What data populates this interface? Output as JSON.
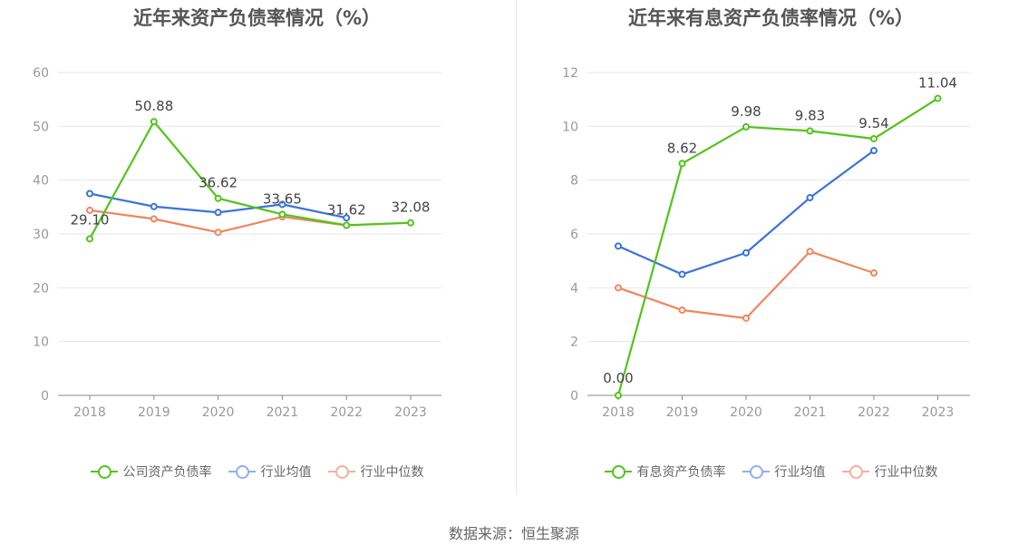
{
  "chart_data": [
    {
      "type": "line",
      "title": "近年来资产负债率情况（%）",
      "categories": [
        "2018",
        "2019",
        "2020",
        "2021",
        "2022",
        "2023"
      ],
      "ylim": [
        0,
        60
      ],
      "yticks": [
        0,
        10,
        20,
        30,
        40,
        50,
        60
      ],
      "grid": true,
      "legend_position": "bottom",
      "series": [
        {
          "name": "公司资产负债率",
          "color": "#52c41a",
          "values": [
            29.1,
            50.88,
            36.62,
            33.65,
            31.62,
            32.08
          ],
          "labels": [
            "29.10",
            "50.88",
            "36.62",
            "33.65",
            "31.62",
            "32.08"
          ],
          "show_labels": true
        },
        {
          "name": "行业均值",
          "color": "#3a73db",
          "values": [
            37.5,
            35.1,
            34.0,
            35.5,
            33.0,
            null
          ],
          "show_labels": false
        },
        {
          "name": "行业中位数",
          "color": "#f0865a",
          "values": [
            34.4,
            32.8,
            30.3,
            33.2,
            31.6,
            null
          ],
          "show_labels": false
        }
      ]
    },
    {
      "type": "line",
      "title": "近年来有息资产负债率情况（%）",
      "categories": [
        "2018",
        "2019",
        "2020",
        "2021",
        "2022",
        "2023"
      ],
      "ylim": [
        0,
        12
      ],
      "yticks": [
        0,
        2,
        4,
        6,
        8,
        10,
        12
      ],
      "grid": true,
      "legend_position": "bottom",
      "series": [
        {
          "name": "有息资产负债率",
          "color": "#52c41a",
          "values": [
            0.0,
            8.62,
            9.98,
            9.83,
            9.54,
            11.04
          ],
          "labels": [
            "0.00",
            "8.62",
            "9.98",
            "9.83",
            "9.54",
            "11.04"
          ],
          "show_labels": true
        },
        {
          "name": "行业均值",
          "color": "#3a73db",
          "values": [
            5.55,
            4.5,
            5.3,
            7.35,
            9.1,
            null
          ],
          "show_labels": false
        },
        {
          "name": "行业中位数",
          "color": "#f0865a",
          "values": [
            4.0,
            3.17,
            2.87,
            5.35,
            4.55,
            null
          ],
          "show_labels": false
        }
      ]
    }
  ],
  "legend_colors": {
    "company": "#52c41a",
    "avg": "#8fb0f0",
    "median": "#f5b09a"
  },
  "source": "数据来源：恒生聚源"
}
